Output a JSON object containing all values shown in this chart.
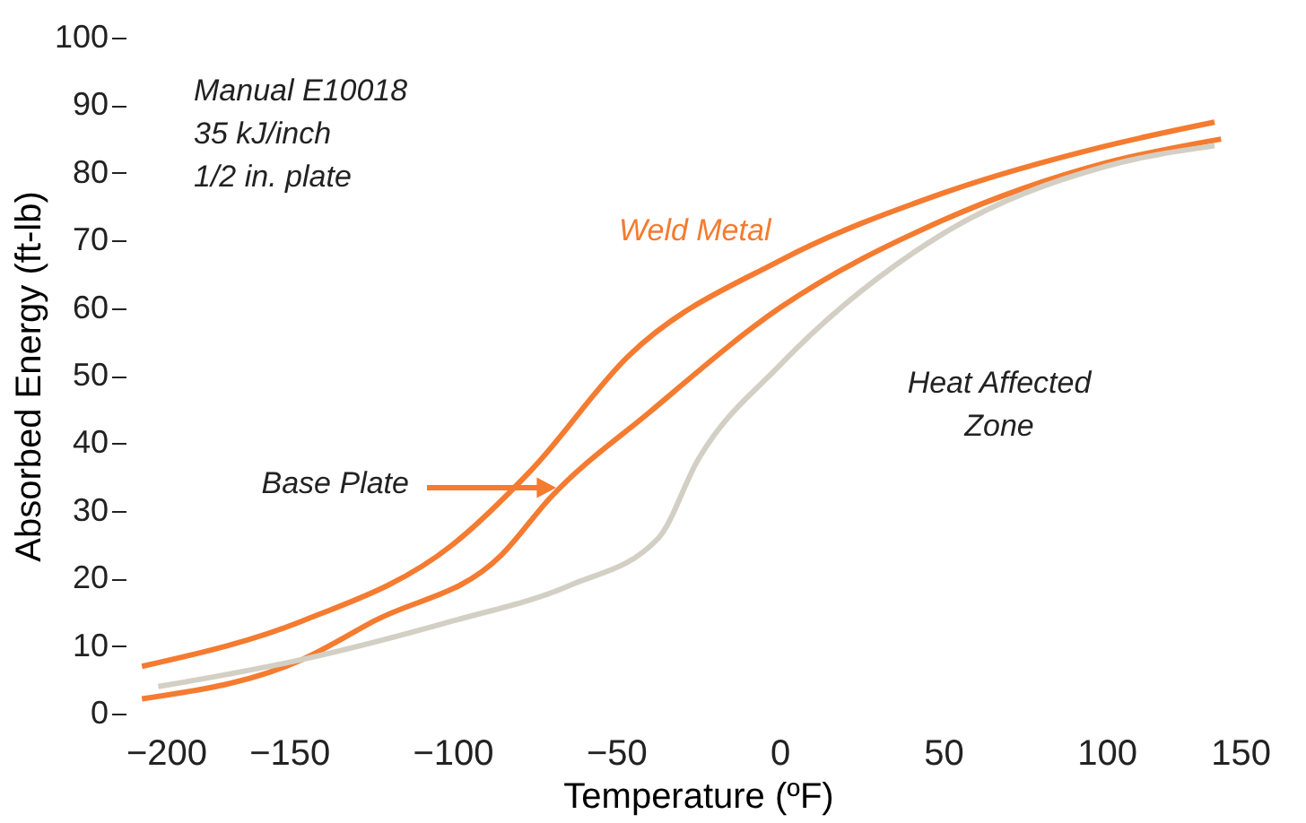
{
  "chart_data": {
    "type": "line",
    "xlabel": "Temperature (ºF)",
    "ylabel": "Absorbed Energy (ft-lb)",
    "xlim": [
      -200,
      150
    ],
    "xticks": [
      -200,
      -150,
      -100,
      -50,
      0,
      50,
      100,
      150
    ],
    "ylim": [
      0,
      100
    ],
    "yticks": [
      0,
      10,
      20,
      30,
      40,
      50,
      60,
      70,
      80,
      90,
      100
    ],
    "grid": false,
    "legend": false,
    "marker": "none",
    "line_style": "solid",
    "series": [
      {
        "color": "#f47b30",
        "x": [
          -195,
          -146,
          -100,
          -76,
          -46,
          0,
          50,
          100,
          133
        ],
        "values": [
          7,
          13.7,
          25,
          36,
          53,
          67,
          77,
          84,
          87.5
        ]
      },
      {
        "color": "#f47b30",
        "x": [
          -195,
          -146,
          -124,
          -85,
          -70,
          -40,
          0,
          50,
          100,
          135
        ],
        "values": [
          2.2,
          8,
          13.7,
          23.5,
          32,
          44.5,
          60,
          73,
          81.5,
          85
        ]
      },
      {
        "color": "#d3cfc4",
        "x": [
          -190,
          -146,
          -100,
          -64,
          -37,
          -25,
          0,
          50,
          100,
          133
        ],
        "values": [
          4,
          8,
          13.7,
          19,
          26,
          37.5,
          51.5,
          71,
          81,
          84
        ]
      }
    ],
    "annotations": [
      "Manual E10018",
      "35 kJ/inch",
      "1/2 in. plate",
      "Weld Metal",
      "Heat Affected Zone",
      "Base Plate"
    ]
  }
}
